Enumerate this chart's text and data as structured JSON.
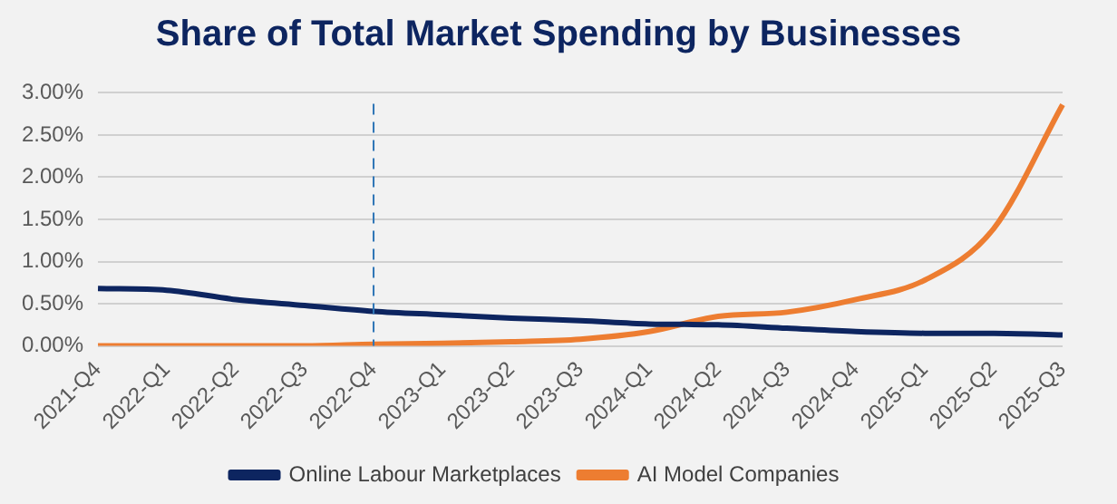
{
  "chart_data": {
    "type": "line",
    "title": "Share of Total Market Spending by Businesses",
    "categories": [
      "2021-Q4",
      "2022-Q1",
      "2022-Q2",
      "2022-Q3",
      "2022-Q4",
      "2023-Q1",
      "2023-Q2",
      "2023-Q3",
      "2024-Q1",
      "2024-Q2",
      "2024-Q3",
      "2024-Q4",
      "2025-Q1",
      "2025-Q2",
      "2025-Q3"
    ],
    "series": [
      {
        "name": "Online Labour Marketplaces",
        "color": "#0d2560",
        "values": [
          0.68,
          0.66,
          0.55,
          0.48,
          0.41,
          0.37,
          0.33,
          0.3,
          0.26,
          0.25,
          0.21,
          0.17,
          0.15,
          0.15,
          0.13
        ]
      },
      {
        "name": "AI Model Companies",
        "color": "#ed7d31",
        "values": [
          0,
          0,
          0,
          0,
          0.02,
          0.03,
          0.05,
          0.08,
          0.17,
          0.35,
          0.4,
          0.55,
          0.78,
          1.39,
          2.86
        ]
      }
    ],
    "ylim": [
      0,
      3
    ],
    "yticks": [
      {
        "value": 0,
        "label": "0.00%"
      },
      {
        "value": 0.5,
        "label": "0.50%"
      },
      {
        "value": 1,
        "label": "1.00%"
      },
      {
        "value": 1.5,
        "label": "1.50%"
      },
      {
        "value": 2,
        "label": "2.00%"
      },
      {
        "value": 2.5,
        "label": "2.50%"
      },
      {
        "value": 3,
        "label": "3.00%"
      }
    ],
    "grid": "y",
    "legend": "bottom",
    "marker": "none",
    "line_style": "solid",
    "ref_lines": [
      {
        "axis": "x",
        "value": "2022-Q4",
        "color": "#2e75b6",
        "line_style": "dashed"
      }
    ]
  }
}
